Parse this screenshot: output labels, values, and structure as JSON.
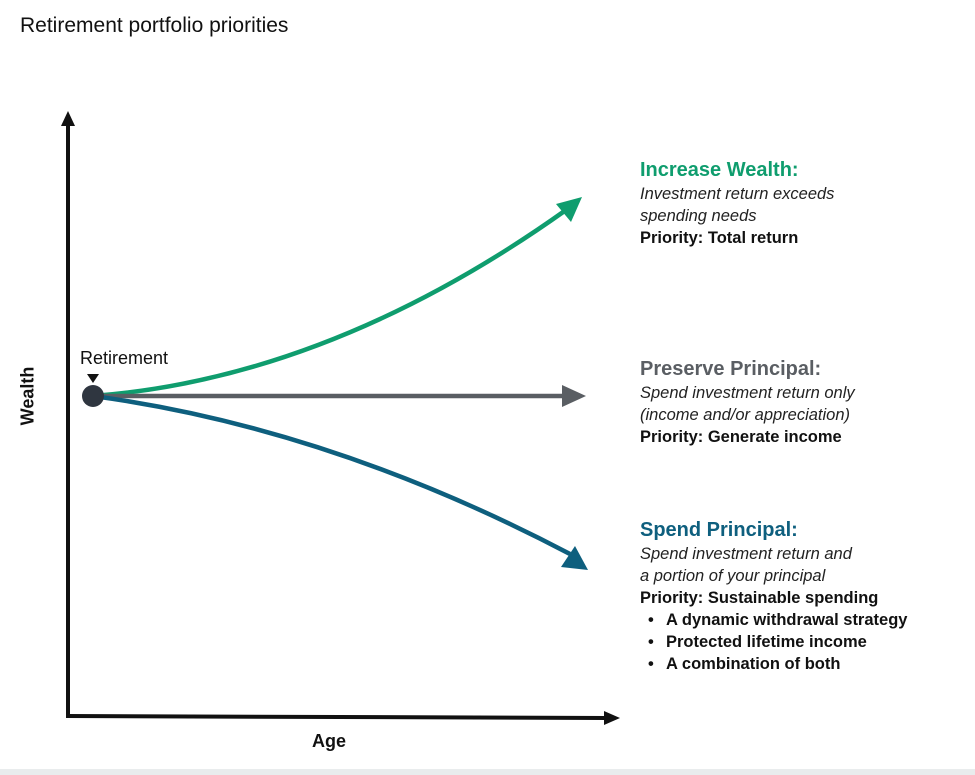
{
  "title": "Retirement portfolio priorities",
  "axes": {
    "x_label": "Age",
    "y_label": "Wealth"
  },
  "marker": {
    "label": "Retirement"
  },
  "colors": {
    "increase": "#0f9d6e",
    "preserve": "#5a5e63",
    "spend": "#0e5f7e",
    "axis": "#111111",
    "dot": "#2f3640"
  },
  "scenarios": [
    {
      "heading": "Increase Wealth:",
      "desc_line1": "Investment return exceeds",
      "desc_line2": "spending needs",
      "priority": "Priority: Total return"
    },
    {
      "heading": "Preserve Principal:",
      "desc_line1": "Spend investment return only",
      "desc_line2": "(income and/or appreciation)",
      "priority": "Priority: Generate income"
    },
    {
      "heading": "Spend Principal:",
      "desc_line1": "Spend investment return and",
      "desc_line2": "a portion of your principal",
      "priority": "Priority: Sustainable spending",
      "bullets": [
        "A dynamic withdrawal strategy",
        "Protected lifetime income",
        "A combination of both"
      ]
    }
  ]
}
